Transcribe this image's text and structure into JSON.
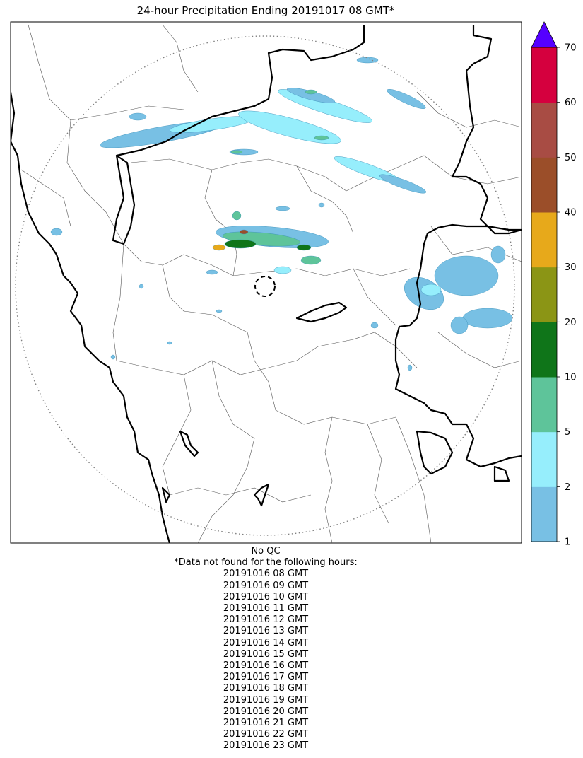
{
  "title": "24-hour Precipitation Ending 20191017 08 GMT*",
  "colorbar": {
    "levels": [
      1,
      2,
      5,
      10,
      20,
      30,
      40,
      50,
      60,
      70
    ],
    "labels": [
      "1",
      "2",
      "5",
      "10",
      "20",
      "30",
      "40",
      "50",
      "60",
      "70"
    ],
    "colors": [
      "#78c0e4",
      "#96eefc",
      "#5ec49a",
      "#0f7519",
      "#8b9515",
      "#e7a91b",
      "#9b4e29",
      "#a84c44",
      "#d5003e"
    ],
    "extend_color": "#5500ff"
  },
  "notes": {
    "qc": "No QC",
    "missing_header": "*Data not found for the following hours:",
    "missing_hours": [
      "20191016 08 GMT",
      "20191016 09 GMT",
      "20191016 10 GMT",
      "20191016 11 GMT",
      "20191016 12 GMT",
      "20191016 13 GMT",
      "20191016 14 GMT",
      "20191016 15 GMT",
      "20191016 16 GMT",
      "20191016 17 GMT",
      "20191016 18 GMT",
      "20191016 19 GMT",
      "20191016 20 GMT",
      "20191016 21 GMT",
      "20191016 22 GMT",
      "20191016 23 GMT"
    ]
  }
}
